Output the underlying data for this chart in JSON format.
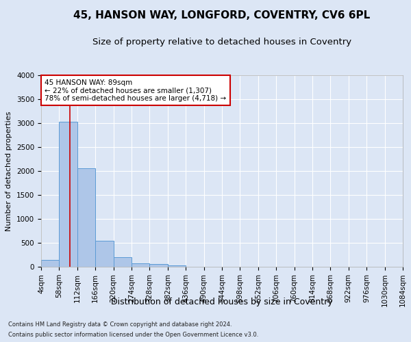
{
  "title_line1": "45, HANSON WAY, LONGFORD, COVENTRY, CV6 6PL",
  "title_line2": "Size of property relative to detached houses in Coventry",
  "xlabel": "Distribution of detached houses by size in Coventry",
  "ylabel": "Number of detached properties",
  "footer_line1": "Contains HM Land Registry data © Crown copyright and database right 2024.",
  "footer_line2": "Contains public sector information licensed under the Open Government Licence v3.0.",
  "bin_edges": [
    4,
    58,
    112,
    166,
    220,
    274,
    328,
    382,
    436,
    490,
    544,
    598,
    652,
    706,
    760,
    814,
    868,
    922,
    976,
    1030,
    1084
  ],
  "bar_heights": [
    140,
    3030,
    2060,
    550,
    200,
    75,
    55,
    35,
    0,
    0,
    0,
    0,
    0,
    0,
    0,
    0,
    0,
    0,
    0,
    0
  ],
  "bar_color": "#aec6e8",
  "bar_edge_color": "#5b9bd5",
  "vline_x": 89,
  "vline_color": "#cc0000",
  "annotation_text": "45 HANSON WAY: 89sqm\n← 22% of detached houses are smaller (1,307)\n78% of semi-detached houses are larger (4,718) →",
  "annotation_box_color": "white",
  "annotation_box_edge": "#cc0000",
  "ylim": [
    0,
    4000
  ],
  "yticks": [
    0,
    500,
    1000,
    1500,
    2000,
    2500,
    3000,
    3500,
    4000
  ],
  "bg_color": "#dce6f5",
  "plot_bg_color": "#dce6f5",
  "grid_color": "white",
  "title1_fontsize": 11,
  "title2_fontsize": 9.5,
  "xlabel_fontsize": 9,
  "ylabel_fontsize": 8,
  "tick_fontsize": 7.5,
  "annotation_fontsize": 7.5,
  "footer_fontsize": 6
}
